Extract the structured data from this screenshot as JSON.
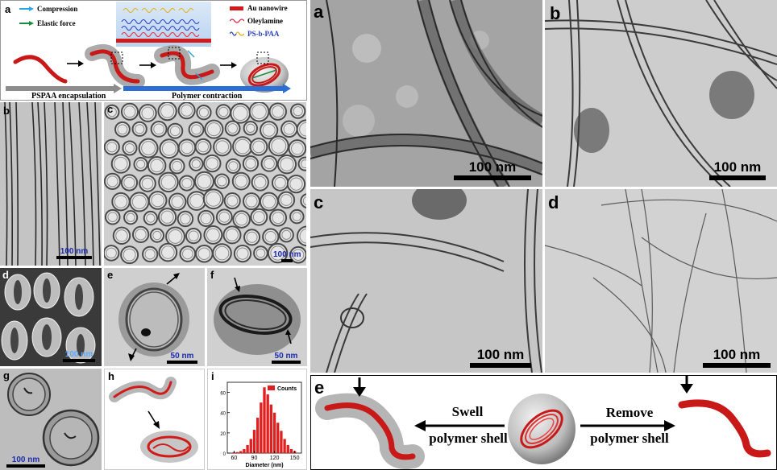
{
  "schematic": {
    "panel_label": "a",
    "legend_left": [
      "Compression",
      "Elastic force"
    ],
    "legend_right": [
      "Au nanowire",
      "Oleylamine",
      "PS-b-PAA"
    ],
    "step1": "PSPAA encapsulation",
    "step2": "Polymer contraction",
    "colors": {
      "compression": "#2aa6e0",
      "elastic": "#1e8c3a",
      "nanowire": "#d11a1a",
      "oleylamine": "#e02a4a",
      "pspaa_ps": "#2b3fc4",
      "pspaa_paa": "#e3b21a",
      "step_arrow": "#2b6fd6"
    }
  },
  "left_panels": [
    {
      "label": "b",
      "scale": "100 nm"
    },
    {
      "label": "c",
      "scale": "100 nm"
    },
    {
      "label": "d",
      "scale": "100 nm"
    },
    {
      "label": "e",
      "scale": "50 nm"
    },
    {
      "label": "f",
      "scale": "50 nm"
    },
    {
      "label": "g",
      "scale": "100 nm"
    },
    {
      "label": "h"
    },
    {
      "label": "i"
    }
  ],
  "histogram": {
    "legend": "Counts",
    "xlabel": "Diameter (nm)",
    "yticks": [
      "0",
      "20",
      "40",
      "60"
    ],
    "xticks": [
      "60",
      "90",
      "120",
      "150"
    ],
    "color": "#e0201e"
  },
  "chart_data": {
    "type": "bar",
    "xlabel": "Diameter (nm)",
    "ylabel": "",
    "xlim": [
      50,
      160
    ],
    "ylim": [
      0,
      70
    ],
    "x": [
      60,
      65,
      70,
      75,
      80,
      85,
      90,
      95,
      100,
      105,
      110,
      115,
      120,
      125,
      130,
      135,
      140,
      145,
      150
    ],
    "values": [
      1,
      1,
      2,
      4,
      8,
      14,
      23,
      35,
      50,
      65,
      58,
      48,
      40,
      30,
      22,
      14,
      8,
      4,
      2
    ],
    "series": [
      {
        "name": "Counts",
        "values": [
          1,
          1,
          2,
          4,
          8,
          14,
          23,
          35,
          50,
          65,
          58,
          48,
          40,
          30,
          22,
          14,
          8,
          4,
          2
        ]
      }
    ]
  },
  "right_panels": [
    {
      "label": "a",
      "scale": "100 nm"
    },
    {
      "label": "b",
      "scale": "100 nm"
    },
    {
      "label": "c",
      "scale": "100 nm"
    },
    {
      "label": "d",
      "scale": "100 nm"
    }
  ],
  "bottom": {
    "label": "e",
    "swell": [
      "Swell",
      "polymer shell"
    ],
    "remove": [
      "Remove",
      "polymer shell"
    ]
  }
}
